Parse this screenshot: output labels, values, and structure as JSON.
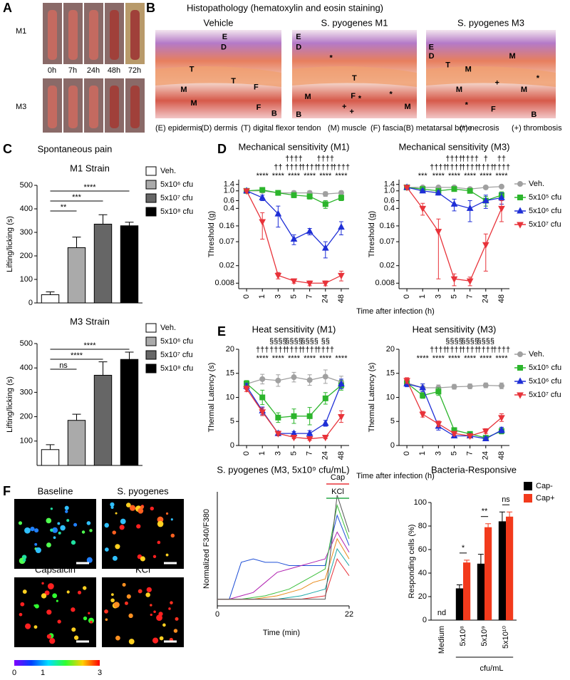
{
  "panel_labels": [
    "A",
    "B",
    "C",
    "D",
    "E",
    "F"
  ],
  "panel_a": {
    "rows": [
      "M1",
      "M3"
    ],
    "times": [
      "0h",
      "7h",
      "24h",
      "48h",
      "72h"
    ]
  },
  "panel_b": {
    "title": "Histopathology (hematoxylin and eosin staining)",
    "images": [
      {
        "title": "Vehicle",
        "labels": [
          "E",
          "D",
          "T",
          "T",
          "F",
          "M",
          "M",
          "F",
          "B"
        ]
      },
      {
        "title": "S. pyogenes M1",
        "labels": [
          "E",
          "D",
          "*",
          "T",
          "M",
          "F",
          "*",
          "*",
          "+",
          "+",
          "M",
          "B"
        ]
      },
      {
        "title": "S. pyogenes M3",
        "labels": [
          "E",
          "D",
          "T",
          "M",
          "M",
          "+",
          "*",
          "M",
          "M",
          "*",
          "F",
          "B"
        ]
      }
    ],
    "key": [
      "(E) epidermis",
      "(D) dermis",
      "(T) digital flexor tendon",
      "(M) muscle",
      "(F) fascia",
      "(B) metatarsal bone",
      "(*) necrosis",
      "(+) thrombosis"
    ]
  },
  "panel_c": {
    "title": "Spontaneous pain"
  },
  "panel_f": {
    "images": [
      "Baseline",
      "S. pyogenes",
      "Capsaicin",
      "KCl"
    ],
    "colorbar": {
      "lim": [
        0,
        3
      ],
      "ticks": [
        0,
        1,
        3
      ]
    }
  },
  "chart_data": [
    {
      "type": "bar",
      "title": "M1 Strain",
      "ylabel": "Lifting/licking (s)",
      "categories": [
        "Veh.",
        "5x10⁶ cfu",
        "5x10⁷ cfu",
        "5x10⁸ cfu"
      ],
      "values": [
        35,
        235,
        335,
        328
      ],
      "errors": [
        12,
        45,
        40,
        15
      ],
      "colors": [
        "#ffffff",
        "#aaaaaa",
        "#666666",
        "#000000"
      ],
      "ylim": [
        0,
        500
      ],
      "yticks": [
        0,
        100,
        200,
        300,
        400,
        500
      ],
      "significance": [
        "**",
        "***",
        "****"
      ]
    },
    {
      "type": "bar",
      "title": "M3 Strain",
      "ylabel": "Lifting/licking (s)",
      "categories": [
        "Veh.",
        "5x10⁶ cfu",
        "5x10⁷ cfu",
        "5x10⁸ cfu"
      ],
      "values": [
        65,
        185,
        370,
        435
      ],
      "errors": [
        20,
        25,
        55,
        30
      ],
      "colors": [
        "#ffffff",
        "#aaaaaa",
        "#666666",
        "#000000"
      ],
      "ylim": [
        0,
        500
      ],
      "yticks": [
        100,
        200,
        300,
        400,
        500
      ],
      "significance": [
        "ns",
        "****",
        "****"
      ]
    },
    {
      "type": "line",
      "title": "Mechanical sensitivity (M1)",
      "ylabel": "Threshold (g)",
      "xlabel": "Time after infection (h)",
      "log_y": true,
      "legend": false,
      "categories": [
        "0",
        "1",
        "3",
        "5",
        "7",
        "24",
        "48"
      ],
      "ylim": [
        0.006,
        1.8
      ],
      "yticks": [
        0.008,
        0.02,
        0.07,
        0.16,
        0.4,
        0.6,
        {
          "value": 1.0,
          "label": "1.0"
        },
        1.4
      ],
      "series": [
        {
          "name": "Veh.",
          "color": "#a0a0a0",
          "marker": "circle",
          "values": [
            1.0,
            1.0,
            0.9,
            0.9,
            0.9,
            0.85,
            0.9
          ],
          "errors": [
            0.05,
            0.05,
            0.1,
            0.1,
            0.1,
            0.1,
            0.1
          ]
        },
        {
          "name": "5x10⁵ cfu",
          "color": "#2cb52c",
          "marker": "square",
          "values": [
            1.0,
            1.05,
            0.9,
            0.8,
            0.75,
            0.5,
            0.7
          ],
          "errors": [
            0.05,
            0.1,
            0.1,
            0.1,
            0.1,
            0.1,
            0.1
          ]
        },
        {
          "name": "5x10⁶ cfu",
          "color": "#1f2fd6",
          "marker": "triangle-up",
          "values": [
            1.0,
            0.7,
            0.3,
            0.08,
            0.12,
            0.05,
            0.15
          ],
          "errors": [
            0.05,
            0.1,
            0.15,
            0.02,
            0.02,
            0.02,
            0.05
          ]
        },
        {
          "name": "5x10⁷ cfu",
          "color": "#e8333a",
          "marker": "triangle-down",
          "values": [
            1.0,
            0.2,
            0.012,
            0.009,
            0.008,
            0.008,
            0.012
          ],
          "errors": [
            0.05,
            0.12,
            0.002,
            0.001,
            0.001,
            0.001,
            0.003
          ]
        }
      ],
      "annotations": [
        [
          null,
          null,
          null,
          "††††",
          null,
          "††††",
          null
        ],
        [
          null,
          null,
          "††",
          "††††",
          "††††",
          "††††",
          "††††"
        ],
        [
          null,
          "****",
          "****",
          "****",
          "****",
          "****",
          "****"
        ]
      ]
    },
    {
      "type": "line",
      "title": "Mechanical sensitivity (M3)",
      "ylabel": "Threshold (g)",
      "log_y": true,
      "legend": true,
      "categories": [
        "0",
        "1",
        "3",
        "5",
        "7",
        "24",
        "48"
      ],
      "ylim": [
        0.006,
        1.8
      ],
      "yticks": [
        0.008,
        0.02,
        0.07,
        0.16,
        0.4,
        0.6,
        {
          "value": 1.0,
          "label": "1.0"
        },
        1.4
      ],
      "series": [
        {
          "name": "Veh.",
          "color": "#a0a0a0",
          "marker": "circle",
          "values": [
            1.2,
            1.2,
            1.2,
            1.2,
            1.1,
            1.2,
            1.25
          ],
          "errors": [
            0.05,
            0.05,
            0.05,
            0.1,
            0.1,
            0.1,
            0.05
          ]
        },
        {
          "name": "5x10⁵ cfu",
          "color": "#2cb52c",
          "marker": "square",
          "values": [
            1.2,
            1.1,
            1.0,
            1.1,
            1.0,
            0.6,
            0.8
          ],
          "errors": [
            0.05,
            0.1,
            0.1,
            0.1,
            0.1,
            0.15,
            0.15
          ]
        },
        {
          "name": "5x10⁶ cfu",
          "color": "#1f2fd6",
          "marker": "triangle-up",
          "values": [
            1.2,
            1.0,
            0.9,
            0.5,
            0.4,
            0.6,
            0.7
          ],
          "errors": [
            0.05,
            0.1,
            0.1,
            0.15,
            0.2,
            0.2,
            0.2
          ]
        },
        {
          "name": "5x10⁷ cfu",
          "color": "#e8333a",
          "marker": "triangle-down",
          "values": [
            1.2,
            0.4,
            0.12,
            0.01,
            0.009,
            0.06,
            0.4
          ],
          "errors": [
            0.05,
            0.12,
            0.11,
            0.003,
            0.002,
            0.045,
            0.2
          ]
        }
      ],
      "annotations": [
        [
          null,
          null,
          null,
          "††††",
          "††††",
          "†",
          "††"
        ],
        [
          null,
          null,
          "††††",
          "††††",
          "††††",
          "††††",
          "††††"
        ],
        [
          null,
          "***",
          "****",
          "****",
          "****",
          "****",
          "****"
        ]
      ]
    },
    {
      "type": "line",
      "title": "Heat sensitivity (M1)",
      "ylabel": "Thermal Latency (s)",
      "xlabel": "Time after infection (h)",
      "log_y": false,
      "legend": false,
      "categories": [
        "0",
        "1",
        "3",
        "5",
        "7",
        "24",
        "48"
      ],
      "ylim": [
        0,
        20
      ],
      "yticks": [
        0,
        5,
        10,
        15,
        20
      ],
      "series": [
        {
          "name": "Veh.",
          "color": "#a0a0a0",
          "marker": "circle",
          "values": [
            12.8,
            13.8,
            13.5,
            14.2,
            13.6,
            14.3,
            13.2
          ],
          "errors": [
            0.6,
            1.0,
            1.2,
            1.0,
            1.1,
            1.4,
            1.2
          ]
        },
        {
          "name": "5x10⁵ cfu",
          "color": "#2cb52c",
          "marker": "square",
          "values": [
            12.9,
            10,
            5.8,
            6.1,
            6.1,
            9.8,
            12.5
          ],
          "errors": [
            0.6,
            1.5,
            1.0,
            1.5,
            1.8,
            1.2,
            1.0
          ]
        },
        {
          "name": "5x10⁶ cfu",
          "color": "#1f2fd6",
          "marker": "triangle-up",
          "values": [
            12.3,
            7.2,
            2.5,
            2.5,
            2.5,
            4.6,
            12.8
          ],
          "errors": [
            0.6,
            0.8,
            0.5,
            0.4,
            0.6,
            0.6,
            1.0
          ]
        },
        {
          "name": "5x10⁷ cfu",
          "color": "#e8333a",
          "marker": "triangle-down",
          "values": [
            11.8,
            7,
            2.5,
            1.7,
            1.4,
            1.7,
            6
          ],
          "errors": [
            0.6,
            0.8,
            0.4,
            0.3,
            0.3,
            0.3,
            1.2
          ]
        }
      ],
      "annotations": [
        [
          null,
          null,
          "§§§§",
          "§§§§",
          "§§§§",
          "§§",
          null
        ],
        [
          null,
          "†††",
          "††††",
          "††††",
          "††††",
          "††††",
          null
        ],
        [
          null,
          "****",
          "****",
          "****",
          "****",
          "****",
          "****"
        ]
      ]
    },
    {
      "type": "line",
      "title": "Heat sensitivity (M3)",
      "ylabel": "Thermal Latency (s)",
      "log_y": false,
      "legend": true,
      "categories": [
        "0",
        "1",
        "3",
        "5",
        "7",
        "24",
        "48"
      ],
      "ylim": [
        0,
        20
      ],
      "yticks": [
        0,
        5,
        10,
        15,
        20
      ],
      "series": [
        {
          "name": "Veh.",
          "color": "#a0a0a0",
          "marker": "circle",
          "values": [
            13,
            12,
            12,
            12.2,
            12.3,
            12.5,
            12.4
          ],
          "errors": [
            0.6,
            0.8,
            0.6,
            0.5,
            0.5,
            0.5,
            0.6
          ]
        },
        {
          "name": "5x10⁵ cfu",
          "color": "#2cb52c",
          "marker": "square",
          "values": [
            13,
            10.4,
            11.2,
            3.2,
            2.4,
            1.6,
            3.0
          ],
          "errors": [
            0.6,
            0.6,
            0.8,
            0.4,
            0.4,
            0.4,
            0.6
          ]
        },
        {
          "name": "5x10⁶ cfu",
          "color": "#1f2fd6",
          "marker": "triangle-up",
          "values": [
            12.8,
            12,
            4,
            2,
            2,
            1.4,
            3.2
          ],
          "errors": [
            0.6,
            0.8,
            0.8,
            0.4,
            0.4,
            0.4,
            0.6
          ]
        },
        {
          "name": "5x10⁷ cfu",
          "color": "#e8333a",
          "marker": "triangle-down",
          "values": [
            13.5,
            6.5,
            4.5,
            2.5,
            2,
            3,
            5.8
          ],
          "errors": [
            0.6,
            0.6,
            0.6,
            0.4,
            0.4,
            0.5,
            0.8
          ]
        }
      ],
      "annotations": [
        [
          null,
          null,
          null,
          "§§§§",
          "§§§§",
          "§§§§",
          null
        ],
        [
          null,
          null,
          "††††",
          "††††",
          "††††",
          "††††",
          "††††"
        ],
        [
          null,
          "****",
          "****",
          "****",
          "****",
          "****",
          "****"
        ]
      ]
    },
    {
      "type": "line",
      "title": "S. pyogenes (M3, 5x10⁹ cfu/mL)",
      "ylabel": "Normalized F340/F380",
      "xlabel": "Time (min)",
      "x": [
        0,
        2,
        4,
        6,
        8,
        10,
        12,
        14,
        16,
        18,
        20,
        22
      ],
      "xlim": [
        0,
        22
      ],
      "xticks": [
        0,
        22
      ],
      "ylim": [
        0.8,
        4.2
      ],
      "annotations": [
        {
          "text": "Cap",
          "color": "#e8333a"
        },
        {
          "text": "KCl",
          "color": "#2aa84a"
        }
      ],
      "series": [
        {
          "color": "#1f4fd6",
          "values": [
            1,
            1,
            2.1,
            2.2,
            2.1,
            2.1,
            2.0,
            2.0,
            2.0,
            2.0,
            3.5,
            2.6
          ]
        },
        {
          "color": "#b021b0",
          "values": [
            1,
            1,
            1.1,
            1.2,
            1.5,
            1.8,
            1.9,
            2.0,
            2.1,
            2.2,
            3.0,
            2.4
          ]
        },
        {
          "color": "#3cbf3c",
          "values": [
            1,
            1,
            1,
            1.05,
            1.1,
            1.2,
            1.3,
            1.5,
            1.7,
            1.9,
            3.8,
            2.8
          ]
        },
        {
          "color": "#e88a1a",
          "values": [
            1,
            1,
            1,
            1,
            1.05,
            1.1,
            1.2,
            1.3,
            1.5,
            1.6,
            2.8,
            2.2
          ]
        },
        {
          "color": "#1aa8a8",
          "values": [
            1,
            1,
            1,
            1,
            1,
            1,
            1.05,
            1.1,
            1.2,
            1.3,
            2.5,
            2.0
          ]
        },
        {
          "color": "#e8333a",
          "values": [
            1,
            1,
            1,
            1,
            1,
            1,
            1,
            1,
            1.05,
            1.1,
            2.2,
            1.7
          ]
        },
        {
          "color": "#555555",
          "values": [
            1,
            1,
            1,
            1,
            1,
            1,
            1,
            1,
            1,
            1,
            4.1,
            3.0
          ]
        }
      ]
    },
    {
      "type": "grouped_bar",
      "title": "Bacteria-Responsive",
      "ylabel": "Responding cells (%)",
      "xlabel": "cfu/mL",
      "categories": [
        "Medium",
        "5x10⁸",
        "5x10⁹",
        "5x10¹⁰"
      ],
      "ylim": [
        0,
        100
      ],
      "yticks": [
        0,
        20,
        40,
        60,
        80,
        100
      ],
      "missing_label": "nd",
      "series": [
        {
          "name": "Cap-",
          "color": "#000000",
          "values": [
            null,
            27,
            48,
            84
          ],
          "errors": [
            null,
            3,
            8,
            8
          ]
        },
        {
          "name": "Cap+",
          "color": "#f23a1c",
          "values": [
            null,
            49,
            79,
            88
          ],
          "errors": [
            null,
            2,
            3,
            4
          ]
        }
      ],
      "significance": [
        null,
        "*",
        "**",
        "ns"
      ]
    }
  ]
}
